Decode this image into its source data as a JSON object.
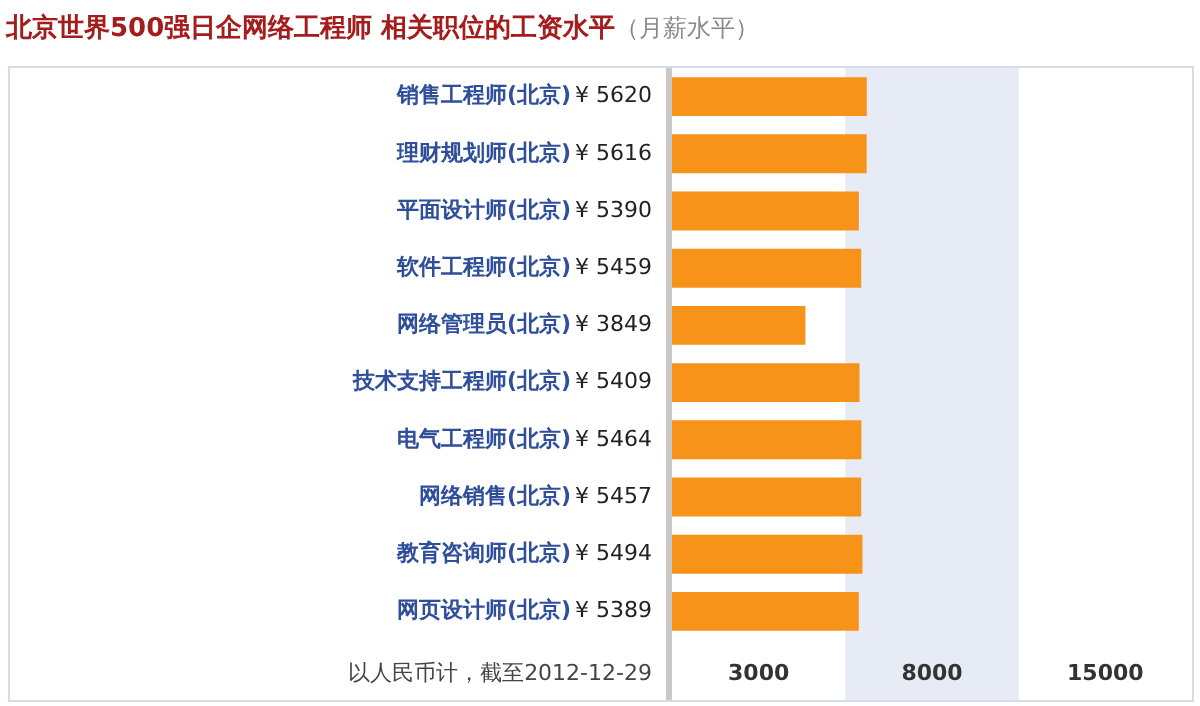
{
  "chart_data": {
    "type": "bar",
    "orientation": "horizontal",
    "title": "北京世界500强日企网络工程师 相关职位的工资水平",
    "subtitle": "（月薪水平）",
    "categories": [
      "销售工程师(北京)",
      "理财规划师(北京)",
      "平面设计师(北京)",
      "软件工程师(北京)",
      "网络管理员(北京)",
      "技术支持工程师(北京)",
      "电气工程师(北京)",
      "网络销售(北京)",
      "教育咨询师(北京)",
      "网页设计师(北京)"
    ],
    "values": [
      5620,
      5616,
      5390,
      5459,
      3849,
      5409,
      5464,
      5457,
      5494,
      5389
    ],
    "value_labels": [
      "¥ 5620",
      "¥ 5616",
      "¥ 5390",
      "¥ 5459",
      "¥ 3849",
      "¥ 5409",
      "¥ 5464",
      "¥ 5457",
      "¥ 5494",
      "¥ 5389"
    ],
    "color": "#f8931a",
    "xlim": [
      0,
      15000
    ],
    "bands": [
      {
        "axis": "x",
        "from": 5000,
        "to": 10000,
        "label": "8000",
        "color": "#e6ebf6"
      }
    ],
    "annotations": [
      "以人民币计，截至2012-12-29",
      "3000",
      "15000"
    ],
    "legend": false
  }
}
